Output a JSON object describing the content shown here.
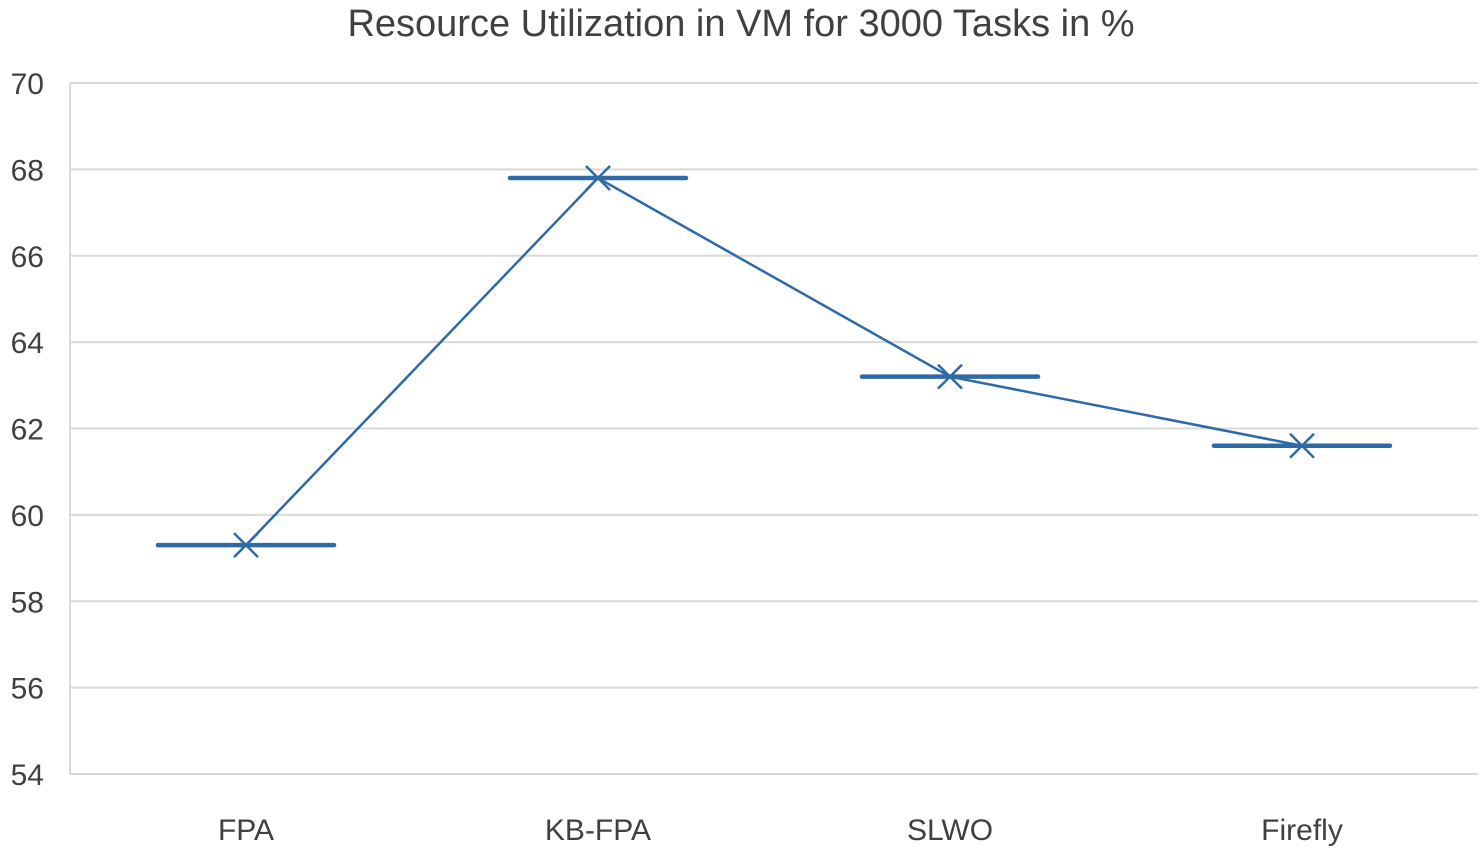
{
  "chart_data": {
    "type": "line",
    "title": "Resource Utilization in VM for 3000 Tasks in %",
    "xlabel": "",
    "ylabel": "",
    "categories": [
      "FPA",
      "KB-FPA",
      "SLWO",
      "Firefly"
    ],
    "series": [
      {
        "values": [
          59.3,
          67.8,
          63.2,
          61.6
        ]
      }
    ],
    "ylim": [
      54,
      70
    ],
    "yticks": [
      "54",
      "56",
      "58",
      "60",
      "62",
      "64",
      "66",
      "68",
      "70"
    ],
    "grid": true,
    "legend": "none",
    "colors": {
      "series": "#2e6aa6",
      "grid": "#d9d9d9",
      "text": "#404040"
    }
  }
}
